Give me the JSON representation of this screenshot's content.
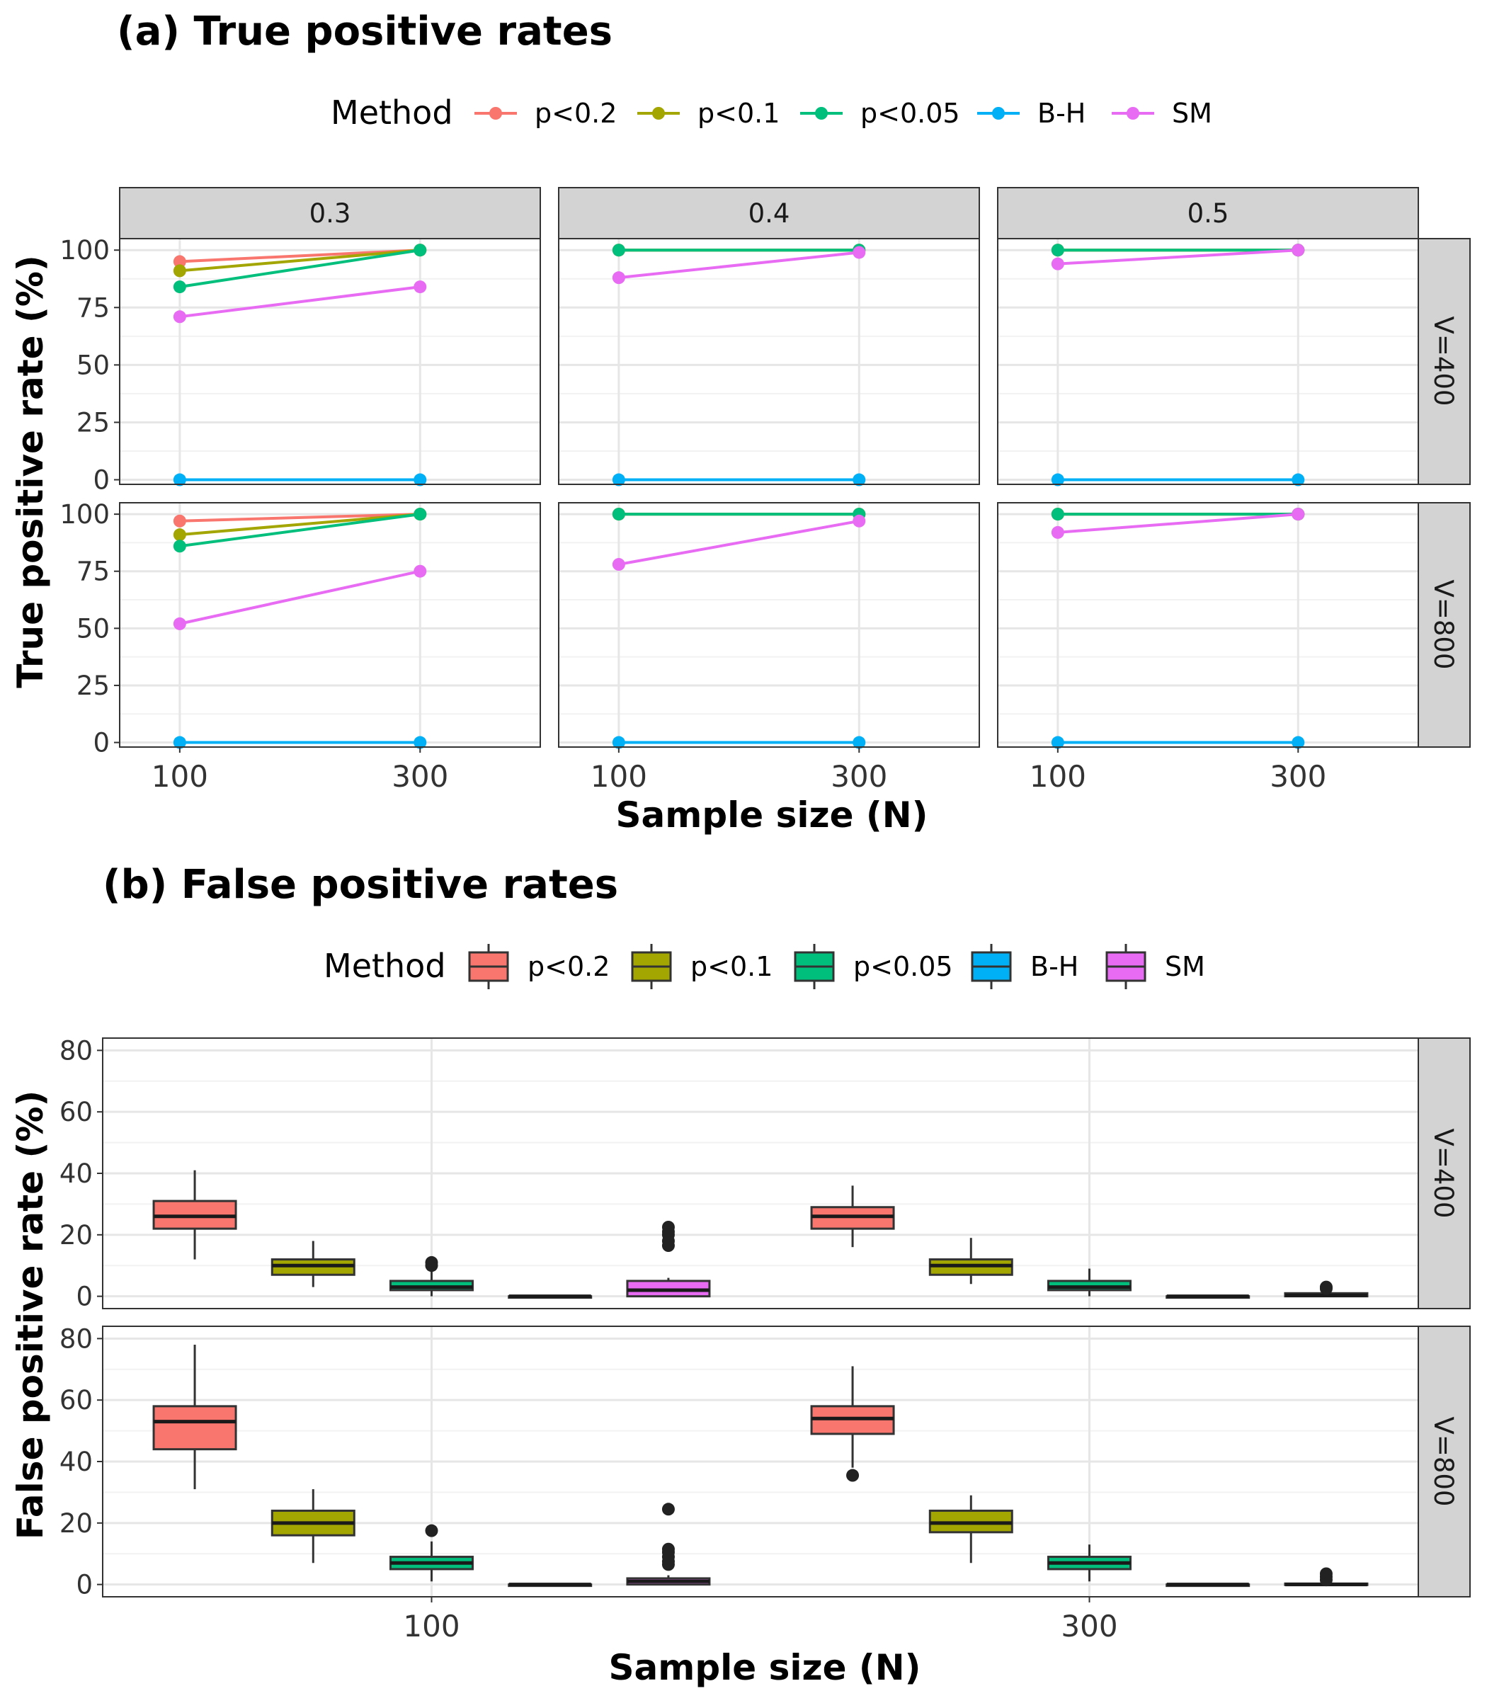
{
  "colors": {
    "p<0.2": "#F8766D",
    "p<0.1": "#A3A500",
    "p<0.05": "#00BF7D",
    "B-H": "#00B0F6",
    "SM": "#E76BF3",
    "strip_bg": "#D3D3D3",
    "grid_major": "#E6E6E6",
    "grid_minor": "#F2F2F2",
    "panel_border": "#333333"
  },
  "chart_data": [
    {
      "id": "a",
      "type": "line",
      "title": "(a) True positive rates",
      "legend": {
        "title": "Method",
        "placement": "top",
        "entries": [
          "p<0.2",
          "p<0.1",
          "p<0.05",
          "B-H",
          "SM"
        ]
      },
      "xlabel": "Sample size (N)",
      "ylabel": "True positive rate (%)",
      "x": [
        100,
        300
      ],
      "x_tick_labels": [
        "100",
        "300"
      ],
      "xlim": [
        50,
        400
      ],
      "ylim": [
        -2,
        105
      ],
      "y_ticks": [
        0,
        25,
        50,
        75,
        100
      ],
      "y_tick_labels": [
        "0",
        "25",
        "50",
        "75",
        "100"
      ],
      "col_facets": [
        "0.3",
        "0.4",
        "0.5"
      ],
      "row_facets": [
        "V=400",
        "V=800"
      ],
      "panels": [
        {
          "row": "V=400",
          "col": "0.3",
          "series": [
            {
              "name": "p<0.2",
              "values": [
                95,
                100
              ]
            },
            {
              "name": "p<0.1",
              "values": [
                91,
                100
              ]
            },
            {
              "name": "p<0.05",
              "values": [
                84,
                100
              ]
            },
            {
              "name": "B-H",
              "values": [
                0,
                0
              ]
            },
            {
              "name": "SM",
              "values": [
                71,
                84
              ]
            }
          ]
        },
        {
          "row": "V=400",
          "col": "0.4",
          "series": [
            {
              "name": "p<0.2",
              "values": [
                100,
                100
              ]
            },
            {
              "name": "p<0.1",
              "values": [
                100,
                100
              ]
            },
            {
              "name": "p<0.05",
              "values": [
                100,
                100
              ]
            },
            {
              "name": "B-H",
              "values": [
                0,
                0
              ]
            },
            {
              "name": "SM",
              "values": [
                88,
                99
              ]
            }
          ]
        },
        {
          "row": "V=400",
          "col": "0.5",
          "series": [
            {
              "name": "p<0.2",
              "values": [
                100,
                100
              ]
            },
            {
              "name": "p<0.1",
              "values": [
                100,
                100
              ]
            },
            {
              "name": "p<0.05",
              "values": [
                100,
                100
              ]
            },
            {
              "name": "B-H",
              "values": [
                0,
                0
              ]
            },
            {
              "name": "SM",
              "values": [
                94,
                100
              ]
            }
          ]
        },
        {
          "row": "V=800",
          "col": "0.3",
          "series": [
            {
              "name": "p<0.2",
              "values": [
                97,
                100
              ]
            },
            {
              "name": "p<0.1",
              "values": [
                91,
                100
              ]
            },
            {
              "name": "p<0.05",
              "values": [
                86,
                100
              ]
            },
            {
              "name": "B-H",
              "values": [
                0,
                0
              ]
            },
            {
              "name": "SM",
              "values": [
                52,
                75
              ]
            }
          ]
        },
        {
          "row": "V=800",
          "col": "0.4",
          "series": [
            {
              "name": "p<0.2",
              "values": [
                100,
                100
              ]
            },
            {
              "name": "p<0.1",
              "values": [
                100,
                100
              ]
            },
            {
              "name": "p<0.05",
              "values": [
                100,
                100
              ]
            },
            {
              "name": "B-H",
              "values": [
                0,
                0
              ]
            },
            {
              "name": "SM",
              "values": [
                78,
                97
              ]
            }
          ]
        },
        {
          "row": "V=800",
          "col": "0.5",
          "series": [
            {
              "name": "p<0.2",
              "values": [
                100,
                100
              ]
            },
            {
              "name": "p<0.1",
              "values": [
                100,
                100
              ]
            },
            {
              "name": "p<0.05",
              "values": [
                100,
                100
              ]
            },
            {
              "name": "B-H",
              "values": [
                0,
                0
              ]
            },
            {
              "name": "SM",
              "values": [
                92,
                100
              ]
            }
          ]
        }
      ]
    },
    {
      "id": "b",
      "type": "boxplot",
      "title": "(b) False positive rates",
      "legend": {
        "title": "Method",
        "placement": "top",
        "entries": [
          "p<0.2",
          "p<0.1",
          "p<0.05",
          "B-H",
          "SM"
        ]
      },
      "xlabel": "Sample size (N)",
      "ylabel": "False positive rate (%)",
      "categories": [
        "100",
        "300"
      ],
      "ylim": [
        -4,
        84
      ],
      "y_ticks": [
        0,
        20,
        40,
        60,
        80
      ],
      "y_tick_labels": [
        "0",
        "20",
        "40",
        "60",
        "80"
      ],
      "row_facets": [
        "V=400",
        "V=800"
      ],
      "panels": [
        {
          "row": "V=400",
          "groups": [
            {
              "category": "100",
              "boxes": [
                {
                  "method": "p<0.2",
                  "min": 12,
                  "q1": 22,
                  "median": 26,
                  "q3": 31,
                  "max": 41,
                  "outliers": []
                },
                {
                  "method": "p<0.1",
                  "min": 3,
                  "q1": 7,
                  "median": 10,
                  "q3": 12,
                  "max": 18,
                  "outliers": []
                },
                {
                  "method": "p<0.05",
                  "min": 0,
                  "q1": 2,
                  "median": 3,
                  "q3": 5,
                  "max": 8,
                  "outliers": [
                    10,
                    11
                  ]
                },
                {
                  "method": "B-H",
                  "min": 0,
                  "q1": 0,
                  "median": 0,
                  "q3": 0,
                  "max": 0,
                  "outliers": []
                },
                {
                  "method": "SM",
                  "min": 0,
                  "q1": 0,
                  "median": 2,
                  "q3": 5,
                  "max": 6,
                  "outliers": [
                    16.5,
                    18,
                    20,
                    21,
                    22.5
                  ]
                }
              ]
            },
            {
              "category": "300",
              "boxes": [
                {
                  "method": "p<0.2",
                  "min": 16,
                  "q1": 22,
                  "median": 26,
                  "q3": 29,
                  "max": 36,
                  "outliers": []
                },
                {
                  "method": "p<0.1",
                  "min": 4,
                  "q1": 7,
                  "median": 10,
                  "q3": 12,
                  "max": 19,
                  "outliers": []
                },
                {
                  "method": "p<0.05",
                  "min": 0,
                  "q1": 2,
                  "median": 3,
                  "q3": 5,
                  "max": 9,
                  "outliers": []
                },
                {
                  "method": "B-H",
                  "min": 0,
                  "q1": 0,
                  "median": 0,
                  "q3": 0,
                  "max": 0,
                  "outliers": []
                },
                {
                  "method": "SM",
                  "min": 0,
                  "q1": 0,
                  "median": 0.3,
                  "q3": 1,
                  "max": 2,
                  "outliers": [
                    2.5,
                    3
                  ]
                }
              ]
            }
          ]
        },
        {
          "row": "V=800",
          "groups": [
            {
              "category": "100",
              "boxes": [
                {
                  "method": "p<0.2",
                  "min": 31,
                  "q1": 44,
                  "median": 53,
                  "q3": 58,
                  "max": 78,
                  "outliers": []
                },
                {
                  "method": "p<0.1",
                  "min": 7,
                  "q1": 16,
                  "median": 20,
                  "q3": 24,
                  "max": 31,
                  "outliers": []
                },
                {
                  "method": "p<0.05",
                  "min": 1,
                  "q1": 5,
                  "median": 7,
                  "q3": 9,
                  "max": 14,
                  "outliers": [
                    17.5
                  ]
                },
                {
                  "method": "B-H",
                  "min": 0,
                  "q1": 0,
                  "median": 0,
                  "q3": 0,
                  "max": 0,
                  "outliers": []
                },
                {
                  "method": "SM",
                  "min": 0,
                  "q1": 0,
                  "median": 1,
                  "q3": 2,
                  "max": 3,
                  "outliers": [
                    6.5,
                    7.5,
                    9,
                    10.5,
                    11.5,
                    24.5
                  ]
                }
              ]
            },
            {
              "category": "300",
              "boxes": [
                {
                  "method": "p<0.2",
                  "min": 38,
                  "q1": 49,
                  "median": 54,
                  "q3": 58,
                  "max": 71,
                  "outliers": [
                    35.5
                  ]
                },
                {
                  "method": "p<0.1",
                  "min": 7,
                  "q1": 17,
                  "median": 20,
                  "q3": 24,
                  "max": 29,
                  "outliers": []
                },
                {
                  "method": "p<0.05",
                  "min": 1,
                  "q1": 5,
                  "median": 7,
                  "q3": 9,
                  "max": 13,
                  "outliers": []
                },
                {
                  "method": "B-H",
                  "min": 0,
                  "q1": 0,
                  "median": 0,
                  "q3": 0,
                  "max": 0,
                  "outliers": []
                },
                {
                  "method": "SM",
                  "min": 0,
                  "q1": 0,
                  "median": 0,
                  "q3": 0.3,
                  "max": 1,
                  "outliers": [
                    1.5,
                    2.5,
                    3.5
                  ]
                }
              ]
            }
          ]
        }
      ]
    }
  ]
}
